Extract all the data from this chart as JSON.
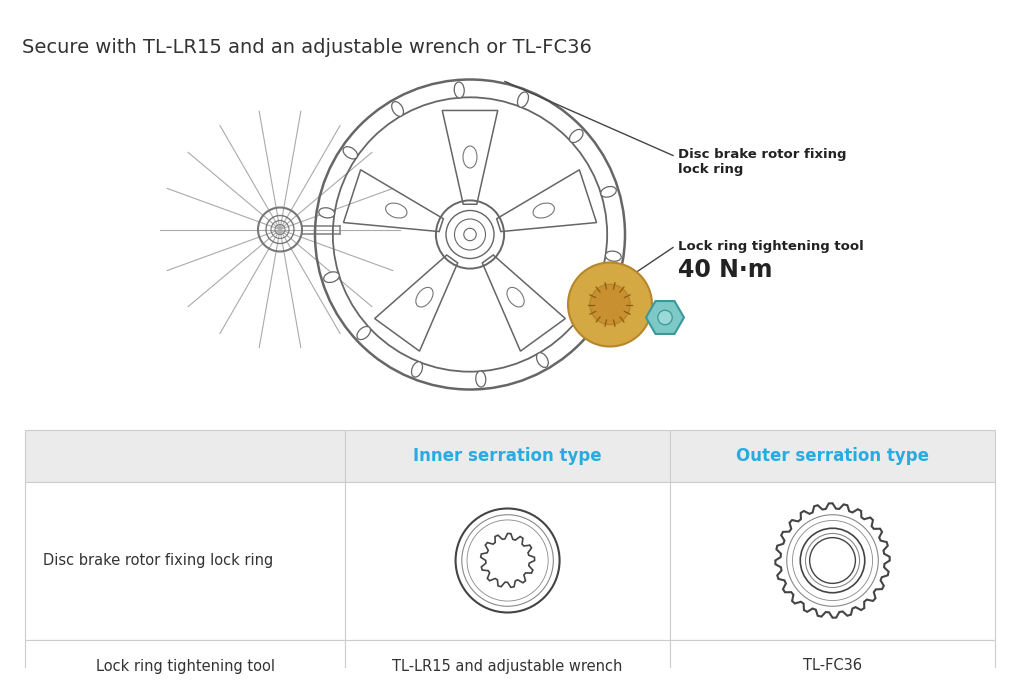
{
  "title": "Secure with TL-LR15 and an adjustable wrench or TL-FC36",
  "title_fontsize": 14,
  "title_color": "#333333",
  "background_color": "#ffffff",
  "table": {
    "header_row": [
      "",
      "Inner serration type",
      "Outer serration type"
    ],
    "header_color": "#29abe2",
    "header_bg": "#ebebeb",
    "row1_col0": "Disc brake rotor fixing lock ring",
    "row2_col0": "Lock ring tightening tool",
    "row2_col1": "TL-LR15 and adjustable wrench",
    "row2_col2": "TL-FC36",
    "border_color": "#cccccc",
    "cell_text_color": "#333333",
    "cell_fontsize": 10.5
  },
  "anno_label1": "Disc brake rotor fixing\nlock ring",
  "anno_label2": "Lock ring tightening tool",
  "anno_torque": "40 N·m",
  "outer_ring_color": "#d4a843",
  "outer_ring_edge": "#b8862a",
  "tool_color": "#7ec8c8",
  "tool_edge": "#3a9a9a",
  "spoke_color": "#aaaaaa",
  "rotor_color": "#666666",
  "ring_draw_color": "#444444",
  "ring_mid_color": "#888888"
}
